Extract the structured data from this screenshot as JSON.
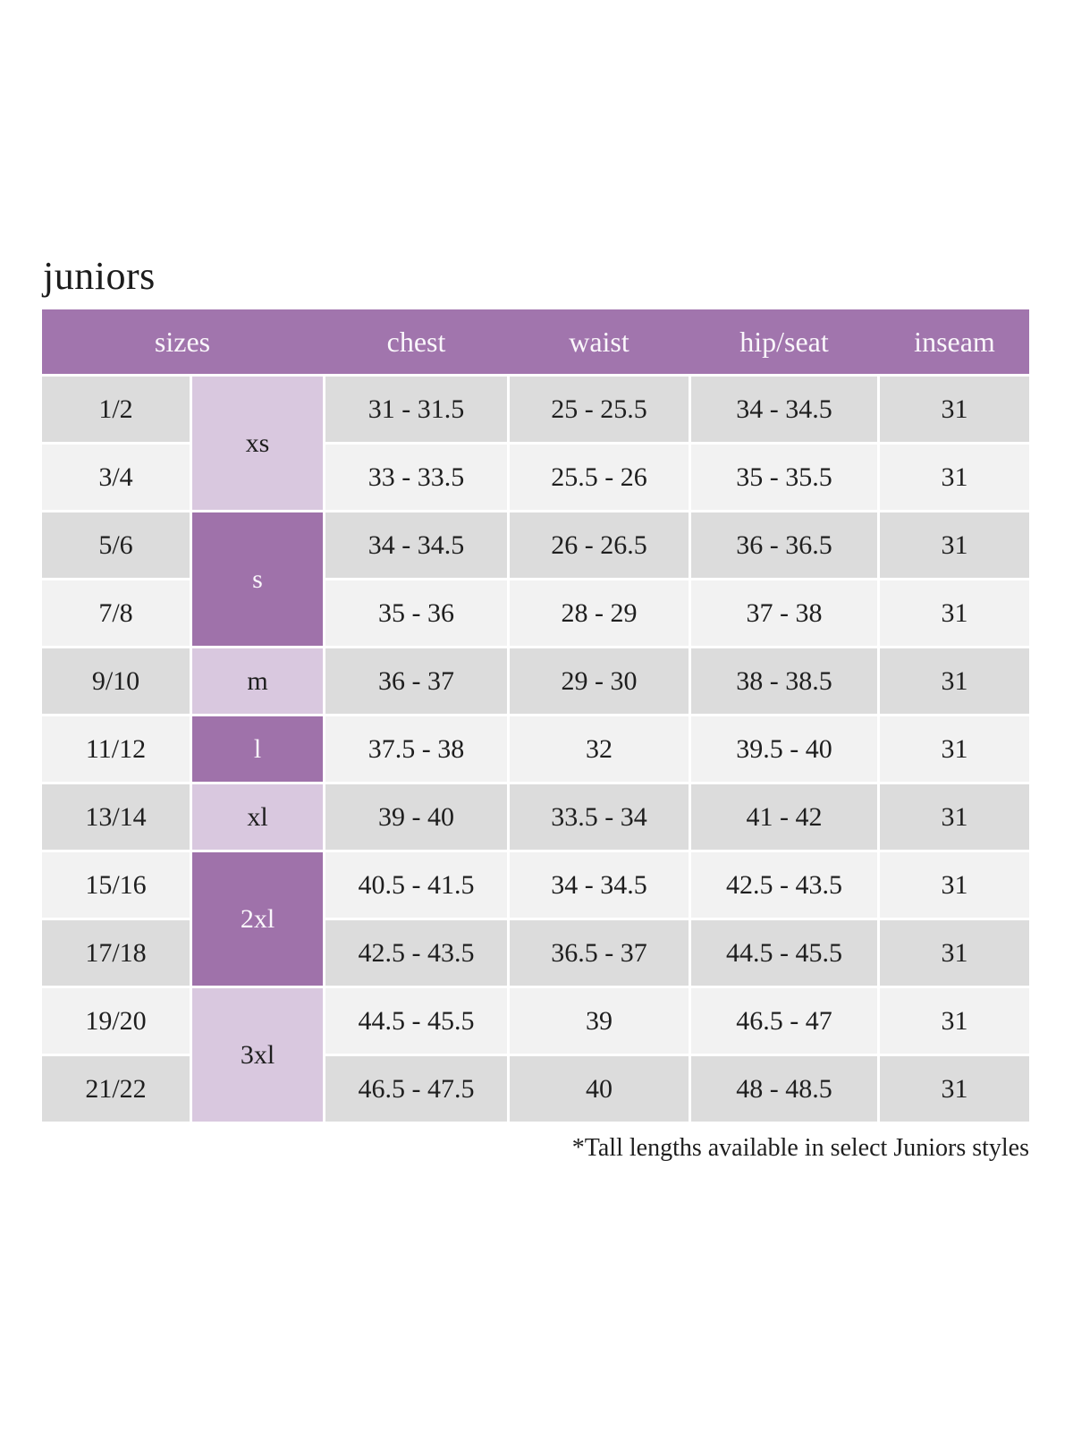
{
  "page": {
    "title": "juniors",
    "footnote": "*Tall lengths available in select Juniors styles"
  },
  "colors": {
    "header_purple": "#a175ad",
    "dark_purple_cell": "#9f72aa",
    "light_purple_cell": "#d9c8df",
    "row_gray": "#dcdcdc",
    "row_light": "#f2f2f2",
    "header_text": "#faf7fb",
    "body_text": "#1e1e1e"
  },
  "table": {
    "headers": [
      "sizes",
      "chest",
      "waist",
      "hip/seat",
      "inseam"
    ],
    "size_groups": [
      {
        "label": "xs",
        "spans_rows": 2
      },
      {
        "label": "s",
        "spans_rows": 2
      },
      {
        "label": "m",
        "spans_rows": 1
      },
      {
        "label": "l",
        "spans_rows": 1
      },
      {
        "label": "xl",
        "spans_rows": 1
      },
      {
        "label": "2xl",
        "spans_rows": 2
      },
      {
        "label": "3xl",
        "spans_rows": 2
      }
    ],
    "rows": [
      {
        "size": "1/2",
        "chest": "31 - 31.5",
        "waist": "25 - 25.5",
        "hip_seat": "34 - 34.5",
        "inseam": "31"
      },
      {
        "size": "3/4",
        "chest": "33 - 33.5",
        "waist": "25.5 - 26",
        "hip_seat": "35 - 35.5",
        "inseam": "31"
      },
      {
        "size": "5/6",
        "chest": "34 - 34.5",
        "waist": "26 - 26.5",
        "hip_seat": "36 - 36.5",
        "inseam": "31"
      },
      {
        "size": "7/8",
        "chest": "35 - 36",
        "waist": "28 - 29",
        "hip_seat": "37 - 38",
        "inseam": "31"
      },
      {
        "size": "9/10",
        "chest": "36 - 37",
        "waist": "29 - 30",
        "hip_seat": "38 - 38.5",
        "inseam": "31"
      },
      {
        "size": "11/12",
        "chest": "37.5 - 38",
        "waist": "32",
        "hip_seat": "39.5 - 40",
        "inseam": "31"
      },
      {
        "size": "13/14",
        "chest": "39 - 40",
        "waist": "33.5 - 34",
        "hip_seat": "41 - 42",
        "inseam": "31"
      },
      {
        "size": "15/16",
        "chest": "40.5 - 41.5",
        "waist": "34 - 34.5",
        "hip_seat": "42.5 - 43.5",
        "inseam": "31"
      },
      {
        "size": "17/18",
        "chest": "42.5 - 43.5",
        "waist": "36.5 - 37",
        "hip_seat": "44.5 - 45.5",
        "inseam": "31"
      },
      {
        "size": "19/20",
        "chest": "44.5 - 45.5",
        "waist": "39",
        "hip_seat": "46.5 - 47",
        "inseam": "31"
      },
      {
        "size": "21/22",
        "chest": "46.5 - 47.5",
        "waist": "40",
        "hip_seat": "48 - 48.5",
        "inseam": "31"
      }
    ]
  }
}
